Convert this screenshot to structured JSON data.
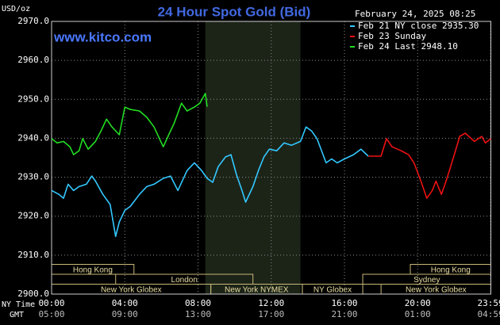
{
  "chart_data": {
    "type": "line",
    "title": "24 Hour Spot Gold (Bid)",
    "subtitle": "www.kitco.com",
    "timestamp": "February 24, 2025 08:25",
    "y_label": "USD/oz",
    "x_label": "NY Time",
    "x2_label": "GMT",
    "grid": true,
    "xlim": [
      0,
      24
    ],
    "ylim": [
      2900,
      2970
    ],
    "yticks": [
      {
        "value": 2900,
        "label": "2900.0"
      },
      {
        "value": 2910,
        "label": "2910.0"
      },
      {
        "value": 2920,
        "label": "2920.0"
      },
      {
        "value": 2930,
        "label": "2930.0"
      },
      {
        "value": 2940,
        "label": "2940.0"
      },
      {
        "value": 2950,
        "label": "2950.0"
      },
      {
        "value": 2960,
        "label": "2960.0"
      },
      {
        "value": 2970,
        "label": "2970.0"
      }
    ],
    "xticks": [
      {
        "value": 0,
        "label": "00:00"
      },
      {
        "value": 4,
        "label": "04:00"
      },
      {
        "value": 8,
        "label": "08:00"
      },
      {
        "value": 12,
        "label": "12:00"
      },
      {
        "value": 16,
        "label": "16:00"
      },
      {
        "value": 20,
        "label": "20:00"
      },
      {
        "value": 23.98,
        "label": "23:59"
      }
    ],
    "x2ticks": [
      {
        "value": 0,
        "label": "05:00"
      },
      {
        "value": 4,
        "label": "09:00"
      },
      {
        "value": 8,
        "label": "13:00"
      },
      {
        "value": 12,
        "label": "17:00"
      },
      {
        "value": 16,
        "label": "21:00"
      },
      {
        "value": 20,
        "label": "01:00"
      },
      {
        "value": 23.98,
        "label": "04:59"
      }
    ],
    "shaded_range": [
      8.4,
      13.6
    ],
    "session_rows": [
      [
        {
          "label": "Hong Kong",
          "start": 0,
          "end": 4.5
        },
        {
          "label": "Hong Kong",
          "start": 19.6,
          "end": 24
        }
      ],
      [
        {
          "label": "London",
          "start": 3.5,
          "end": 11
        },
        {
          "label": "Sydney",
          "start": 17,
          "end": 24
        }
      ],
      [
        {
          "label": "New York Globex",
          "start": 0,
          "end": 8.7
        },
        {
          "label": "New York NYMEX",
          "start": 8.7,
          "end": 13.7
        },
        {
          "label": "NY Globex",
          "start": 13.7,
          "end": 17
        },
        {
          "label": "New York Globex",
          "start": 18,
          "end": 24
        }
      ]
    ],
    "series": [
      {
        "name": "Feb 21 NY close 2935.30",
        "color": "#33c8ff",
        "x": [
          0,
          0.4,
          0.65,
          0.9,
          1.2,
          1.5,
          1.9,
          2.2,
          2.4,
          2.8,
          3.2,
          3.5,
          3.7,
          4.0,
          4.3,
          4.8,
          5.2,
          5.6,
          6.1,
          6.5,
          6.9,
          7.4,
          7.8,
          8.2,
          8.5,
          8.8,
          9.1,
          9.5,
          9.8,
          10.1,
          10.4,
          10.6,
          11.0,
          11.3,
          11.6,
          11.9,
          12.3,
          12.7,
          13.1,
          13.6,
          13.9,
          14.2,
          14.5,
          15.0,
          15.3,
          15.6,
          16.0,
          16.5,
          16.9,
          17.3
        ],
        "values": [
          2926.6,
          2925.6,
          2924.6,
          2928.2,
          2926.6,
          2927.6,
          2928.2,
          2930.3,
          2929.0,
          2925.6,
          2923.0,
          2914.8,
          2918.5,
          2921.5,
          2922.5,
          2925.6,
          2927.6,
          2928.2,
          2929.7,
          2930.3,
          2926.6,
          2931.7,
          2933.7,
          2931.7,
          2929.7,
          2928.7,
          2932.7,
          2935.2,
          2935.8,
          2930.7,
          2926.6,
          2923.6,
          2927.6,
          2931.7,
          2935.2,
          2937.2,
          2936.8,
          2938.8,
          2938.2,
          2939.2,
          2942.9,
          2941.9,
          2939.9,
          2933.7,
          2934.7,
          2933.7,
          2934.7,
          2935.8,
          2937.2,
          2935.4
        ]
      },
      {
        "name": "Feb 23 Sunday",
        "color": "#ee1111",
        "x": [
          17.3,
          18.0,
          18.3,
          18.6,
          19.1,
          19.5,
          19.8,
          20.2,
          20.5,
          20.8,
          21.0,
          21.3,
          21.6,
          22.0,
          22.3,
          22.6,
          23.1,
          23.5,
          23.7,
          24.0
        ],
        "values": [
          2935.4,
          2935.4,
          2939.9,
          2937.8,
          2936.8,
          2935.8,
          2933.7,
          2928.7,
          2924.6,
          2926.6,
          2929.0,
          2925.6,
          2929.7,
          2935.8,
          2940.5,
          2941.3,
          2939.2,
          2940.5,
          2938.8,
          2939.9
        ]
      },
      {
        "name": "Feb 24 Last 2948.10",
        "color": "#22dd22",
        "x": [
          0,
          0.3,
          0.65,
          1.0,
          1.2,
          1.5,
          1.7,
          2.0,
          2.4,
          2.7,
          3.0,
          3.3,
          3.7,
          4.0,
          4.3,
          4.8,
          5.2,
          5.6,
          6.1,
          6.4,
          6.7,
          7.1,
          7.4,
          7.8,
          8.1,
          8.4,
          8.5
        ],
        "values": [
          2939.9,
          2938.8,
          2939.2,
          2937.8,
          2935.8,
          2936.8,
          2939.9,
          2937.2,
          2939.2,
          2941.9,
          2944.9,
          2942.9,
          2940.9,
          2948.0,
          2947.4,
          2947.0,
          2945.4,
          2942.9,
          2937.8,
          2940.9,
          2943.9,
          2949.0,
          2947.0,
          2948.0,
          2949.0,
          2951.5,
          2948.1
        ]
      }
    ]
  }
}
